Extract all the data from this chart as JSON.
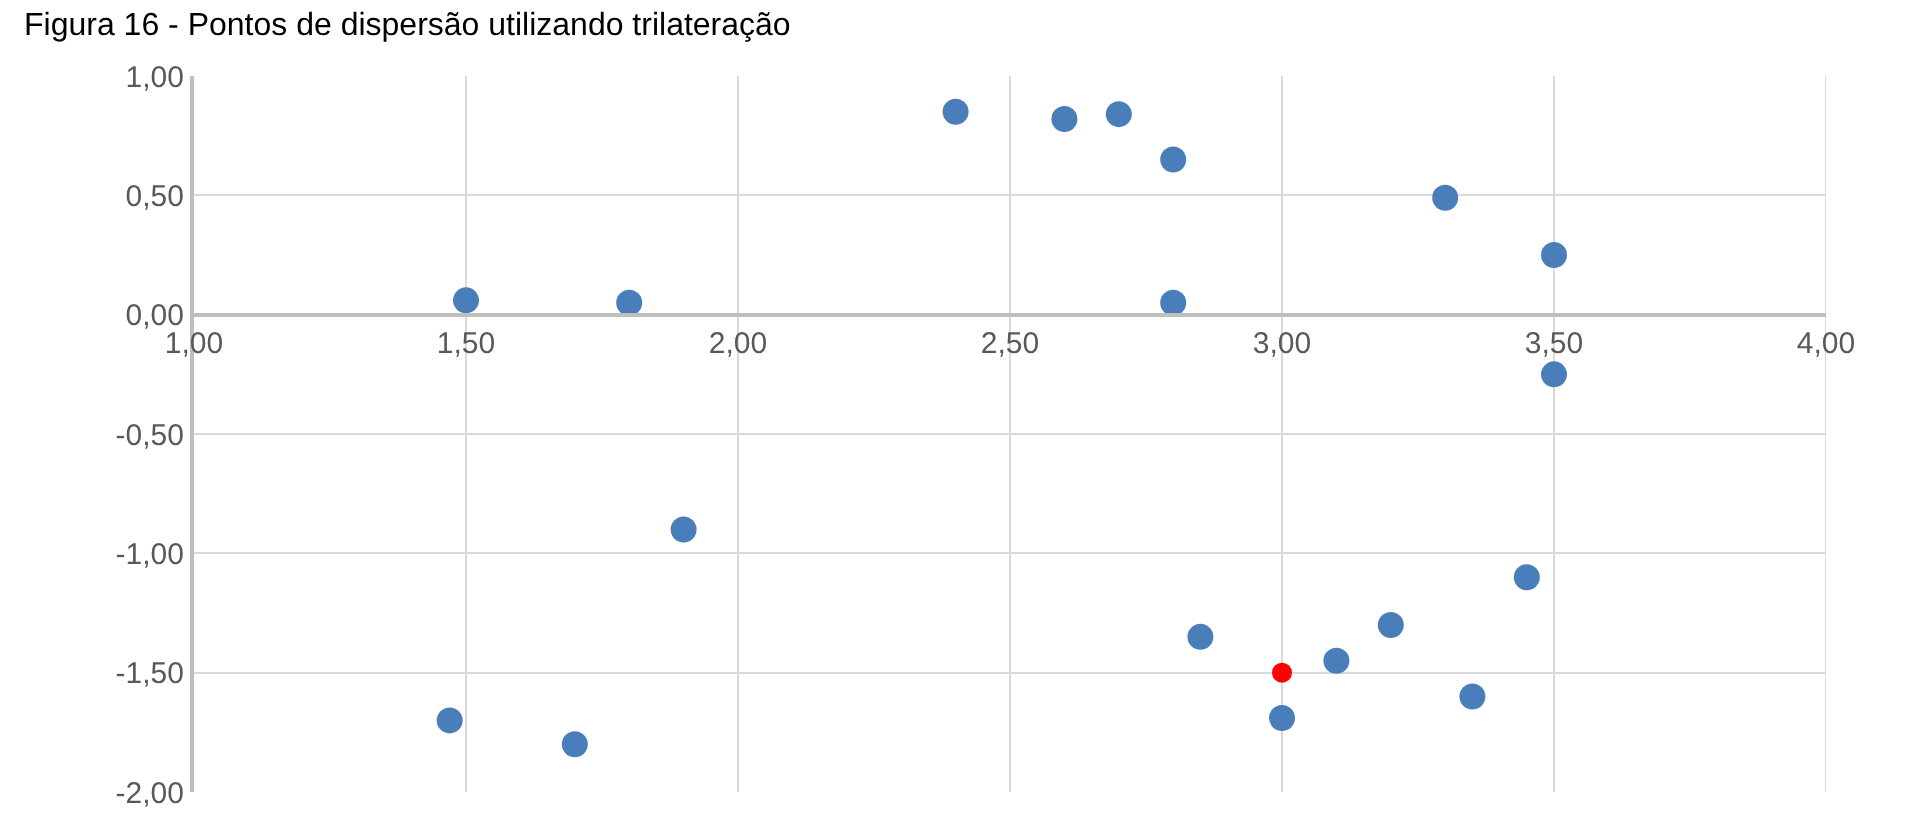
{
  "chart_data": {
    "type": "scatter",
    "title": "Figura 16 - Pontos de dispersão utilizando trilateração",
    "xlim": [
      1,
      4
    ],
    "xticks": [
      {
        "value": 1,
        "label": "1,00"
      },
      {
        "value": 1.5,
        "label": "1,50"
      },
      {
        "value": 2,
        "label": "2,00"
      },
      {
        "value": 2.5,
        "label": "2,50"
      },
      {
        "value": 3,
        "label": "3,00"
      },
      {
        "value": 3.5,
        "label": "3,50"
      },
      {
        "value": 4,
        "label": "4,00"
      }
    ],
    "ylim": [
      -2,
      1
    ],
    "yticks": [
      {
        "value": -2,
        "label": "-2,00"
      },
      {
        "value": -1.5,
        "label": "-1,50"
      },
      {
        "value": -1,
        "label": "-1,00"
      },
      {
        "value": -0.5,
        "label": "-0,50"
      },
      {
        "value": 0,
        "label": "0,00"
      },
      {
        "value": 0.5,
        "label": "0,50"
      },
      {
        "value": 1,
        "label": "1,00"
      }
    ],
    "grid": true,
    "marker": "circle",
    "series": [
      {
        "color": "#4a7ebb",
        "x": [
          1.5,
          1.8,
          2.4,
          2.6,
          2.7,
          2.8,
          2.8,
          3.3,
          3.5,
          3.5,
          1.9,
          1.47,
          1.7,
          2.85,
          3.0,
          3.1,
          3.2,
          3.35,
          3.45
        ],
        "values": [
          0.06,
          0.05,
          0.85,
          0.82,
          0.84,
          0.65,
          0.05,
          0.49,
          0.25,
          -0.25,
          -0.9,
          -1.7,
          -1.8,
          -1.35,
          -1.69,
          -1.45,
          -1.3,
          -1.6,
          -1.1
        ]
      },
      {
        "color": "#ff0000",
        "x": [
          3.0
        ],
        "values": [
          -1.5
        ]
      }
    ]
  }
}
